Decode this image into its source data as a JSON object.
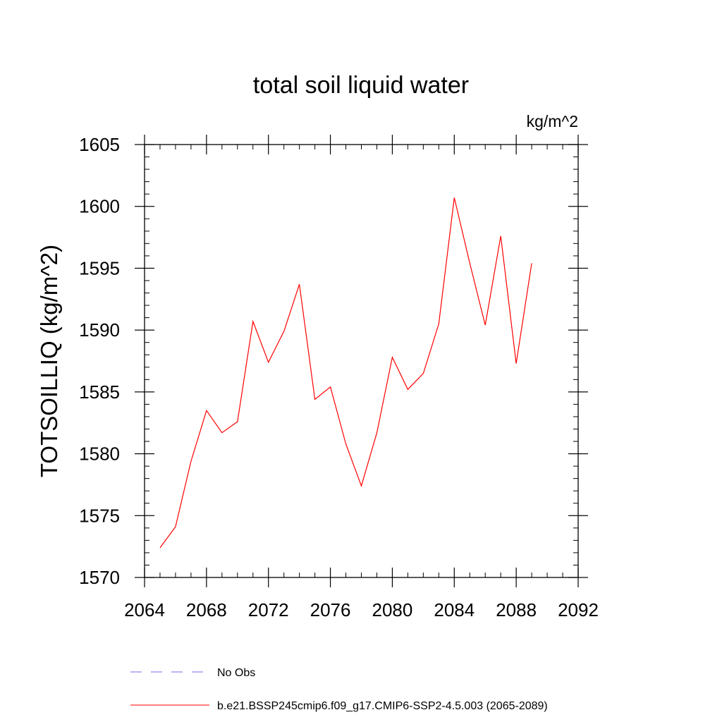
{
  "chart_data": {
    "type": "line",
    "title": "total soil liquid water",
    "units": "kg/m^2",
    "ylabel": "TOTSOILLIQ  (kg/m^2)",
    "xlabel": "",
    "xlim": [
      2064,
      2092
    ],
    "ylim": [
      1570,
      1605
    ],
    "xticks": [
      2064,
      2068,
      2072,
      2076,
      2080,
      2084,
      2088,
      2092
    ],
    "yticks": [
      1570,
      1575,
      1580,
      1585,
      1590,
      1595,
      1600,
      1605
    ],
    "grid": false,
    "legend_position": "bottom",
    "series": [
      {
        "name": "b.e21.BSSP245cmip6.f09_g17.CMIP6-SSP2-4.5.003 (2065-2089)",
        "color": "#ff0000",
        "dash": "solid",
        "x": [
          2065,
          2066,
          2067,
          2068,
          2069,
          2070,
          2071,
          2072,
          2073,
          2074,
          2075,
          2076,
          2077,
          2078,
          2079,
          2080,
          2081,
          2082,
          2083,
          2084,
          2085,
          2086,
          2087,
          2088,
          2089
        ],
        "y": [
          1572.4,
          1574.1,
          1579.4,
          1583.5,
          1581.7,
          1582.6,
          1590.7,
          1587.4,
          1589.9,
          1593.7,
          1584.4,
          1585.4,
          1580.8,
          1577.4,
          1581.7,
          1587.8,
          1585.2,
          1586.5,
          1590.5,
          1600.7,
          1595.4,
          1590.4,
          1597.6,
          1587.3,
          1595.4
        ]
      }
    ],
    "legend": [
      {
        "label": "No Obs",
        "color": "#7b68ee",
        "dash": "dashed"
      },
      {
        "label": "b.e21.BSSP245cmip6.f09_g17.CMIP6-SSP2-4.5.003 (2065-2089)",
        "color": "#ff0000",
        "dash": "solid"
      }
    ]
  }
}
